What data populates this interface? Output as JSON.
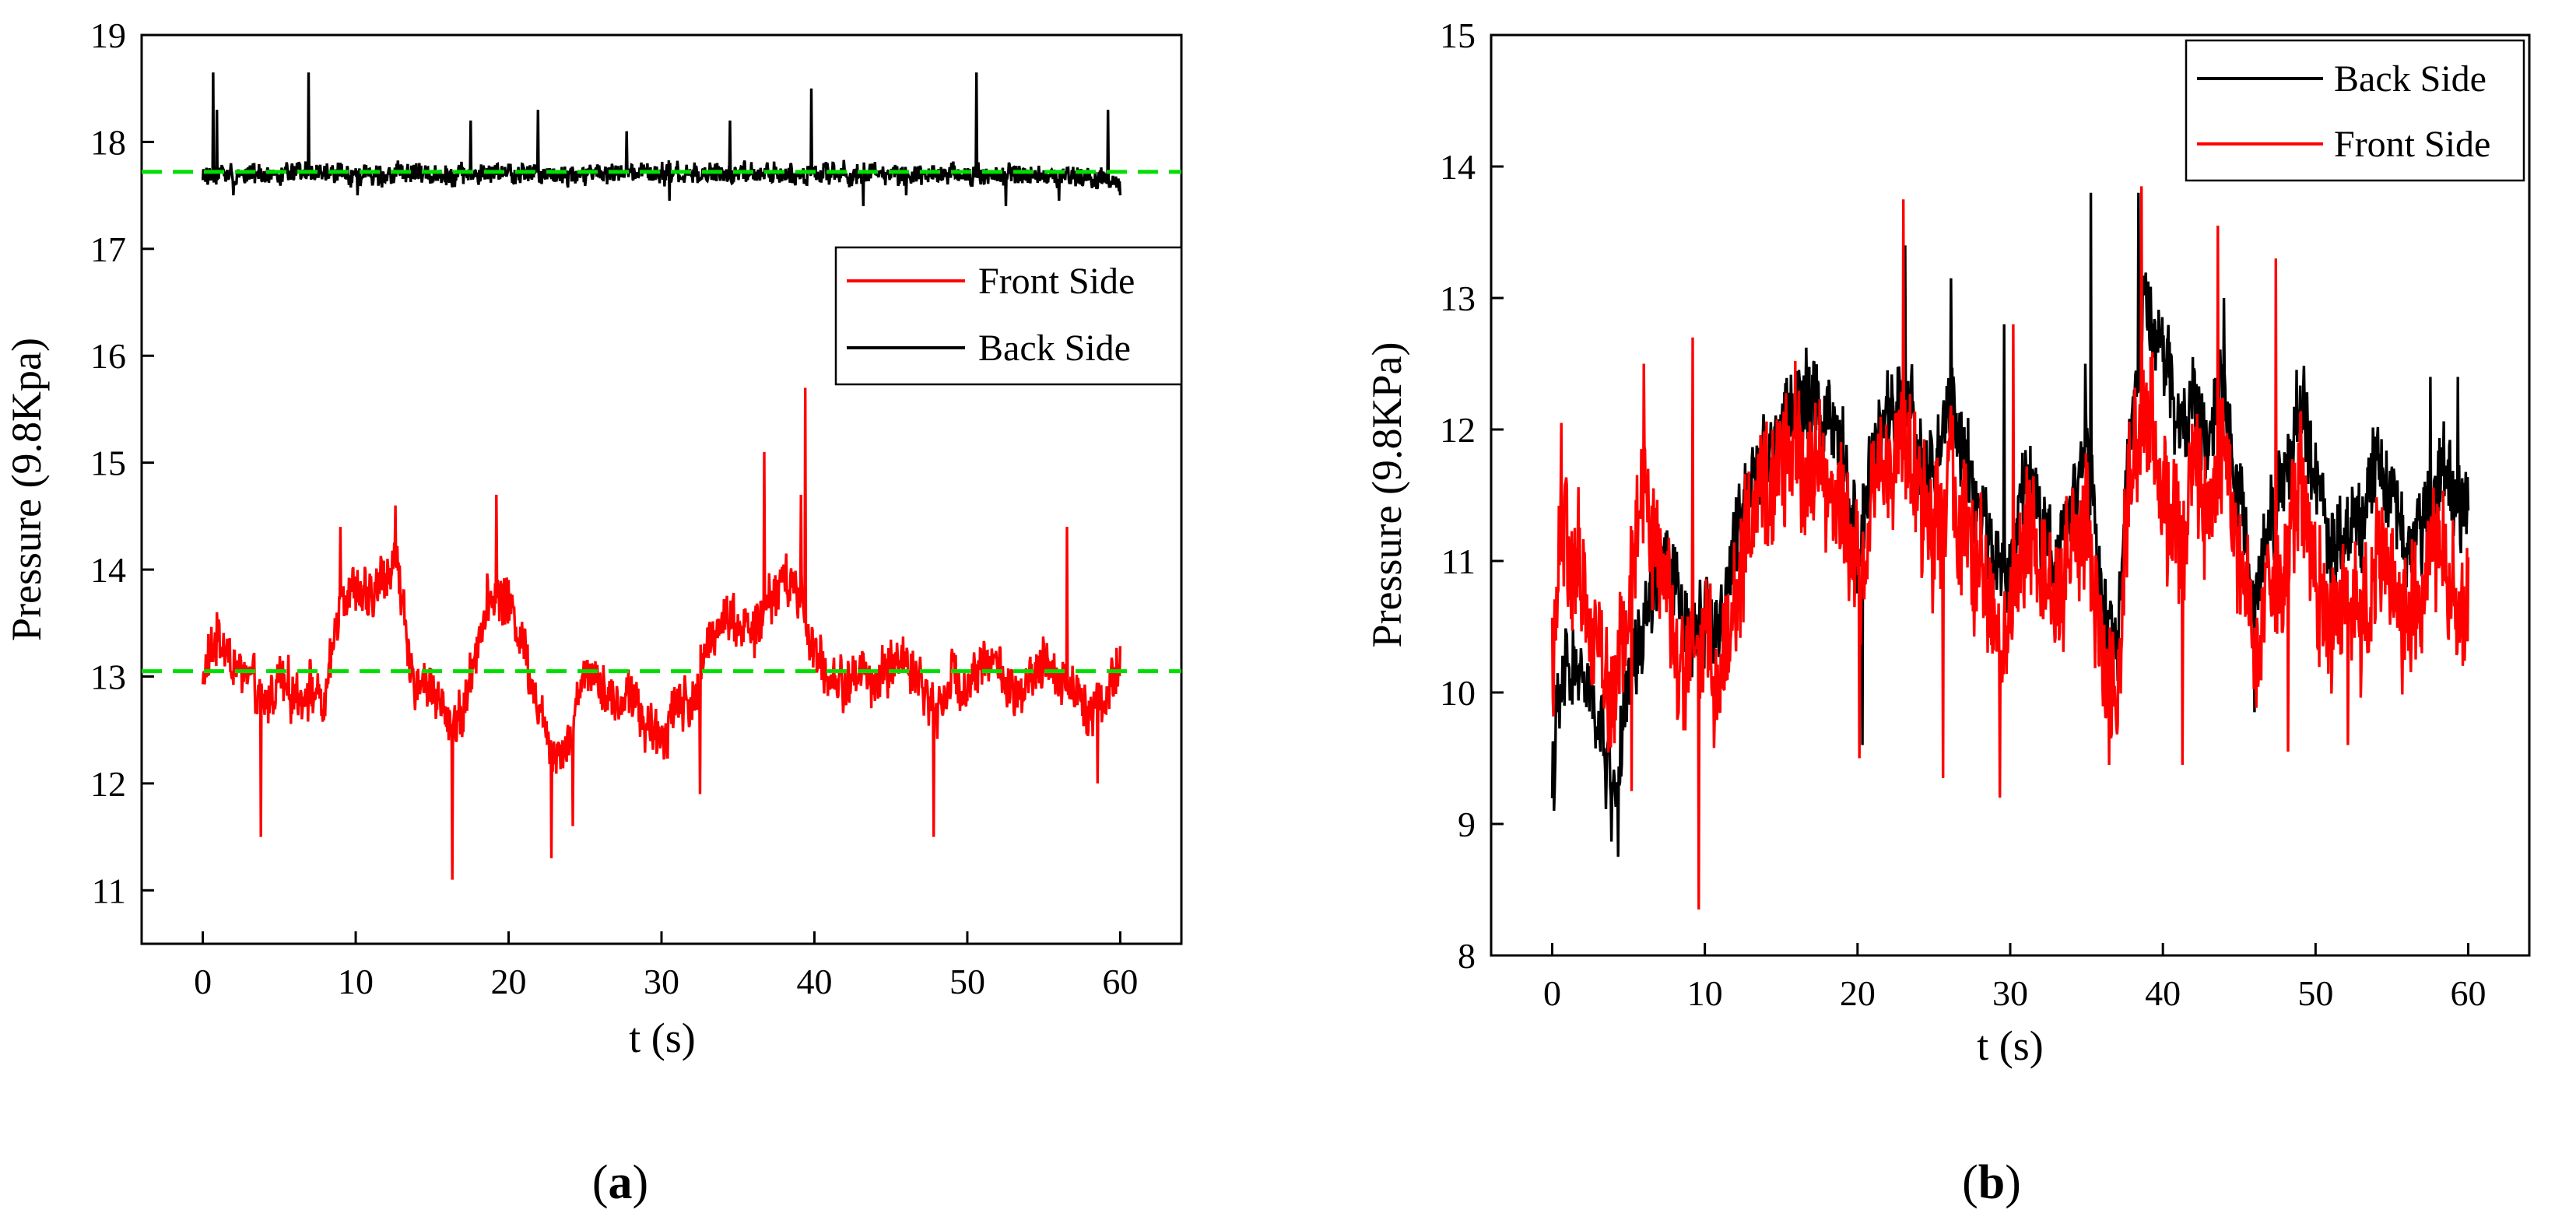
{
  "figure": {
    "panel_labels": [
      {
        "open": "(",
        "letter": "a",
        "close": ")"
      },
      {
        "open": "(",
        "letter": "b",
        "close": ")"
      }
    ]
  },
  "colors": {
    "front": "#ff0000",
    "back": "#000000",
    "reference": "#00dd00"
  },
  "chart_data": [
    {
      "type": "line",
      "panel": "a",
      "title": "",
      "xlabel": "t (s)",
      "ylabel": "Pressure (9.8Kpa)",
      "xlim": [
        -4,
        64
      ],
      "ylim": [
        10.5,
        19
      ],
      "xticks": [
        0,
        10,
        20,
        30,
        40,
        50,
        60
      ],
      "yticks": [
        11,
        12,
        13,
        14,
        15,
        16,
        17,
        18,
        19
      ],
      "legend": [
        "Front Side",
        "Back Side"
      ],
      "legend_position": "center-right",
      "reference_lines": [
        {
          "y": 17.72,
          "style": "dashed",
          "color": "#00dd00"
        },
        {
          "y": 13.05,
          "style": "dashed",
          "color": "#00dd00"
        }
      ],
      "series": [
        {
          "name": "Front Side",
          "color": "#ff0000",
          "mean": 13.05,
          "t_range": [
            0,
            60
          ],
          "points_per_second": 25,
          "anchors": [
            [
              0,
              13.0
            ],
            [
              1,
              13.4
            ],
            [
              2,
              13.1
            ],
            [
              3,
              13.0
            ],
            [
              4,
              12.7
            ],
            [
              5,
              13.0
            ],
            [
              6,
              12.8
            ],
            [
              7,
              12.9
            ],
            [
              8,
              12.7
            ],
            [
              9,
              13.8
            ],
            [
              10,
              13.8
            ],
            [
              11,
              13.7
            ],
            [
              12,
              14.0
            ],
            [
              12.8,
              14.1
            ],
            [
              13.5,
              13.0
            ],
            [
              15,
              12.9
            ],
            [
              16,
              12.6
            ],
            [
              17,
              12.6
            ],
            [
              18,
              13.4
            ],
            [
              19,
              13.8
            ],
            [
              20,
              13.7
            ],
            [
              21,
              13.3
            ],
            [
              22,
              12.7
            ],
            [
              23,
              12.3
            ],
            [
              24,
              12.4
            ],
            [
              25,
              13.1
            ],
            [
              26,
              13.0
            ],
            [
              27,
              12.7
            ],
            [
              28,
              12.9
            ],
            [
              29,
              12.5
            ],
            [
              30,
              12.4
            ],
            [
              31,
              12.8
            ],
            [
              32,
              12.7
            ],
            [
              33,
              13.3
            ],
            [
              34,
              13.6
            ],
            [
              35,
              13.5
            ],
            [
              36,
              13.4
            ],
            [
              37,
              13.7
            ],
            [
              38,
              13.9
            ],
            [
              39,
              13.8
            ],
            [
              40,
              13.2
            ],
            [
              41,
              13.0
            ],
            [
              42,
              12.9
            ],
            [
              43,
              13.1
            ],
            [
              44,
              12.9
            ],
            [
              45,
              13.1
            ],
            [
              46,
              13.2
            ],
            [
              47,
              12.9
            ],
            [
              48,
              12.7
            ],
            [
              49,
              13.0
            ],
            [
              50,
              12.9
            ],
            [
              51,
              13.2
            ],
            [
              52,
              13.1
            ],
            [
              53,
              12.8
            ],
            [
              54,
              12.9
            ],
            [
              55,
              13.1
            ],
            [
              56,
              13.0
            ],
            [
              57,
              12.9
            ],
            [
              58,
              12.7
            ],
            [
              59,
              12.8
            ],
            [
              60,
              13.1
            ]
          ],
          "noise_amplitude": 0.35,
          "spikes": [
            [
              3.8,
              11.5
            ],
            [
              16.3,
              11.1
            ],
            [
              19.2,
              14.7
            ],
            [
              22.8,
              11.3
            ],
            [
              24.2,
              11.6
            ],
            [
              32.5,
              11.9
            ],
            [
              36.7,
              15.1
            ],
            [
              39.4,
              15.7
            ],
            [
              39.1,
              14.7
            ],
            [
              47.8,
              11.5
            ],
            [
              56.5,
              14.4
            ],
            [
              58.5,
              12.0
            ],
            [
              12.6,
              14.6
            ],
            [
              9.0,
              14.4
            ]
          ]
        },
        {
          "name": "Back Side",
          "color": "#000000",
          "mean": 17.72,
          "t_range": [
            0,
            60
          ],
          "points_per_second": 25,
          "anchors": [
            [
              0,
              17.7
            ],
            [
              10,
              17.7
            ],
            [
              20,
              17.7
            ],
            [
              30,
              17.7
            ],
            [
              40,
              17.7
            ],
            [
              50,
              17.7
            ],
            [
              60,
              17.65
            ]
          ],
          "noise_amplitude": 0.14,
          "spikes": [
            [
              0.3,
              17.6
            ],
            [
              0.7,
              18.65
            ],
            [
              0.9,
              18.3
            ],
            [
              6.9,
              18.65
            ],
            [
              17.5,
              18.2
            ],
            [
              21.9,
              18.3
            ],
            [
              27.7,
              18.1
            ],
            [
              34.5,
              18.2
            ],
            [
              39.8,
              18.5
            ],
            [
              43.2,
              17.4
            ],
            [
              50.6,
              18.65
            ],
            [
              52.5,
              17.4
            ],
            [
              59.2,
              18.3
            ],
            [
              60,
              17.5
            ],
            [
              2,
              17.5
            ],
            [
              10.1,
              17.5
            ],
            [
              30.5,
              17.45
            ],
            [
              46,
              17.5
            ],
            [
              56,
              17.45
            ]
          ]
        }
      ]
    },
    {
      "type": "line",
      "panel": "b",
      "title": "",
      "xlabel": "t (s)",
      "ylabel": "Pressure (9.8KPa)",
      "xlim": [
        -4,
        64
      ],
      "ylim": [
        8,
        15
      ],
      "xticks": [
        0,
        10,
        20,
        30,
        40,
        50,
        60
      ],
      "yticks": [
        8,
        9,
        10,
        11,
        12,
        13,
        14,
        15
      ],
      "legend": [
        "Back Side",
        "Front Side"
      ],
      "legend_position": "top-right",
      "series": [
        {
          "name": "Back Side",
          "color": "#000000",
          "t_range": [
            0,
            60
          ],
          "points_per_second": 25,
          "anchors": [
            [
              0,
              9.4
            ],
            [
              0.5,
              9.9
            ],
            [
              1,
              10.2
            ],
            [
              2,
              10.1
            ],
            [
              3,
              9.8
            ],
            [
              4,
              9.2
            ],
            [
              5,
              10.0
            ],
            [
              6,
              10.5
            ],
            [
              7,
              11.0
            ],
            [
              8,
              10.8
            ],
            [
              9,
              10.4
            ],
            [
              10,
              10.6
            ],
            [
              11,
              10.5
            ],
            [
              12,
              11.1
            ],
            [
              13,
              11.7
            ],
            [
              14,
              11.9
            ],
            [
              15,
              12.0
            ],
            [
              16,
              12.2
            ],
            [
              17,
              12.2
            ],
            [
              18,
              12.1
            ],
            [
              19,
              11.8
            ],
            [
              20,
              11.1
            ],
            [
              21,
              11.8
            ],
            [
              22,
              12.1
            ],
            [
              23,
              12.2
            ],
            [
              24,
              11.9
            ],
            [
              25,
              11.6
            ],
            [
              26,
              12.2
            ],
            [
              27,
              11.8
            ],
            [
              28,
              11.4
            ],
            [
              29,
              11.0
            ],
            [
              30,
              10.9
            ],
            [
              31,
              11.7
            ],
            [
              32,
              11.3
            ],
            [
              33,
              11.1
            ],
            [
              34,
              11.4
            ],
            [
              35,
              11.9
            ],
            [
              36,
              10.6
            ],
            [
              37,
              10.4
            ],
            [
              38,
              12.3
            ],
            [
              39,
              12.9
            ],
            [
              40,
              12.6
            ],
            [
              41,
              12.0
            ],
            [
              42,
              12.2
            ],
            [
              43,
              11.9
            ],
            [
              44,
              12.4
            ],
            [
              45,
              11.4
            ],
            [
              46,
              10.7
            ],
            [
              47,
              11.4
            ],
            [
              48,
              11.6
            ],
            [
              49,
              12.2
            ],
            [
              50,
              11.7
            ],
            [
              51,
              11.1
            ],
            [
              52,
              11.2
            ],
            [
              53,
              11.3
            ],
            [
              54,
              11.9
            ],
            [
              55,
              11.5
            ],
            [
              56,
              11.1
            ],
            [
              57,
              11.3
            ],
            [
              58,
              11.7
            ],
            [
              59,
              11.6
            ],
            [
              60,
              11.4
            ]
          ],
          "noise_amplitude": 0.5,
          "spikes": [
            [
              0.1,
              9.1
            ],
            [
              4.3,
              8.75
            ],
            [
              35.3,
              13.8
            ],
            [
              23.1,
              13.4
            ],
            [
              26.1,
              13.15
            ],
            [
              38.4,
              13.8
            ],
            [
              46,
              9.85
            ],
            [
              44,
              13.0
            ],
            [
              57.5,
              12.4
            ],
            [
              59.3,
              12.4
            ],
            [
              20.3,
              9.6
            ],
            [
              29.6,
              12.8
            ],
            [
              34.9,
              12.5
            ]
          ]
        },
        {
          "name": "Front Side",
          "color": "#ff0000",
          "t_range": [
            0,
            60
          ],
          "points_per_second": 25,
          "anchors": [
            [
              0,
              10.2
            ],
            [
              0.5,
              11.3
            ],
            [
              1,
              11.0
            ],
            [
              2,
              10.8
            ],
            [
              3,
              10.5
            ],
            [
              4,
              9.9
            ],
            [
              5,
              10.7
            ],
            [
              6,
              11.6
            ],
            [
              7,
              11.0
            ],
            [
              8,
              10.4
            ],
            [
              9,
              10.2
            ],
            [
              10,
              10.4
            ],
            [
              11,
              10.1
            ],
            [
              12,
              10.8
            ],
            [
              13,
              11.3
            ],
            [
              14,
              11.5
            ],
            [
              15,
              11.8
            ],
            [
              16,
              11.8
            ],
            [
              17,
              11.7
            ],
            [
              18,
              11.6
            ],
            [
              19,
              11.4
            ],
            [
              20,
              10.8
            ],
            [
              21,
              11.5
            ],
            [
              22,
              11.8
            ],
            [
              23,
              12.0
            ],
            [
              24,
              11.4
            ],
            [
              25,
              11.2
            ],
            [
              26,
              11.8
            ],
            [
              27,
              11.2
            ],
            [
              28,
              10.9
            ],
            [
              29,
              10.5
            ],
            [
              30,
              10.6
            ],
            [
              31,
              11.3
            ],
            [
              32,
              11.0
            ],
            [
              33,
              10.6
            ],
            [
              34,
              11.0
            ],
            [
              35,
              11.3
            ],
            [
              36,
              10.2
            ],
            [
              37,
              10.0
            ],
            [
              38,
              12.0
            ],
            [
              39,
              12.2
            ],
            [
              40,
              11.6
            ],
            [
              41,
              11.0
            ],
            [
              42,
              11.6
            ],
            [
              43,
              11.2
            ],
            [
              44,
              11.8
            ],
            [
              45,
              11.0
            ],
            [
              46,
              10.3
            ],
            [
              47,
              10.8
            ],
            [
              48,
              10.9
            ],
            [
              49,
              11.6
            ],
            [
              50,
              11.0
            ],
            [
              51,
              10.4
            ],
            [
              52,
              10.6
            ],
            [
              53,
              10.6
            ],
            [
              54,
              11.0
            ],
            [
              55,
              11.0
            ],
            [
              56,
              10.5
            ],
            [
              57,
              10.7
            ],
            [
              58,
              11.2
            ],
            [
              59,
              10.7
            ],
            [
              60,
              10.5
            ]
          ],
          "noise_amplitude": 0.75,
          "spikes": [
            [
              9.6,
              8.35
            ],
            [
              0.6,
              12.05
            ],
            [
              6.0,
              12.5
            ],
            [
              9.2,
              12.7
            ],
            [
              23.0,
              13.75
            ],
            [
              25.6,
              9.35
            ],
            [
              29.3,
              9.2
            ],
            [
              38.6,
              13.85
            ],
            [
              43.6,
              13.55
            ],
            [
              47.4,
              13.3
            ],
            [
              41.3,
              9.45
            ],
            [
              36.5,
              9.45
            ],
            [
              20.1,
              9.5
            ],
            [
              30.2,
              12.8
            ],
            [
              5.2,
              9.25
            ],
            [
              48.2,
              9.55
            ],
            [
              52.1,
              9.6
            ]
          ]
        }
      ]
    }
  ]
}
